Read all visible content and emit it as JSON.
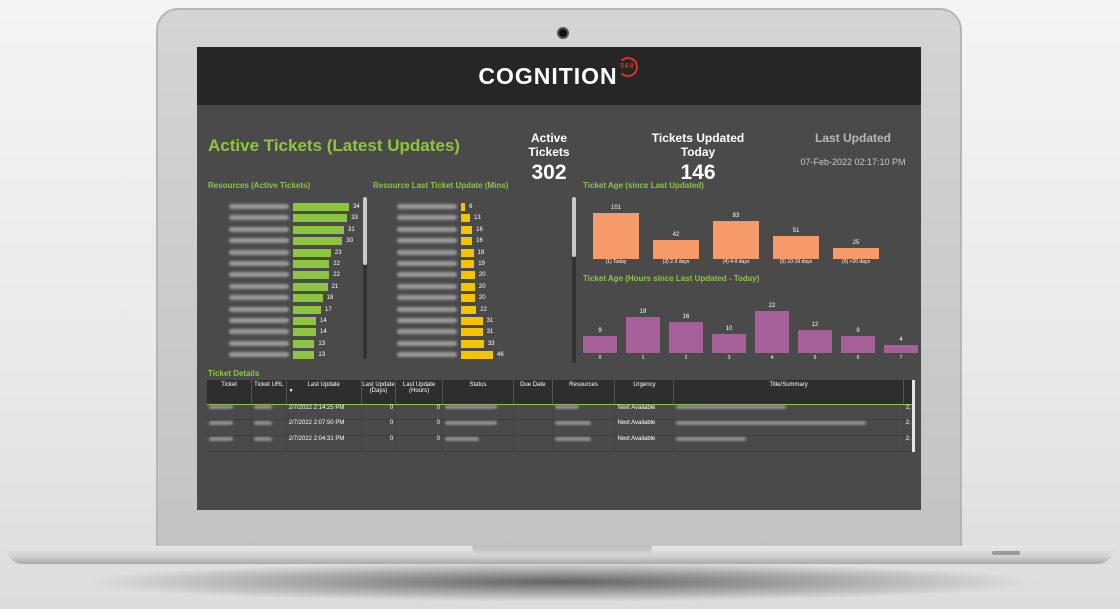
{
  "brand": {
    "logo_text": "COGNITION",
    "logo_sub": "360"
  },
  "header": {
    "title": "Active Tickets (Latest Updates)"
  },
  "kpis": {
    "active_label": "Active Tickets",
    "active_value": "302",
    "today_label": "Tickets Updated Today",
    "today_value": "146",
    "last_label": "Last Updated",
    "last_value": "07-Feb-2022 02:17:10 PM"
  },
  "colors": {
    "green": "#8cc63f",
    "yellow": "#f5c400",
    "orange": "#f79a6a",
    "purple": "#a6609a"
  },
  "resources_chart": {
    "title": "Resources (Active Tickets)",
    "values": [
      34,
      33,
      31,
      30,
      23,
      22,
      22,
      21,
      18,
      17,
      14,
      14,
      13,
      13
    ]
  },
  "last_update_chart": {
    "title": "Resource Last Ticket Update (Mins)",
    "values": [
      6,
      13,
      16,
      16,
      18,
      19,
      20,
      20,
      20,
      22,
      31,
      31,
      33,
      46
    ]
  },
  "chart_data": [
    {
      "type": "bar",
      "title": "Ticket Age (since Last Updated)",
      "categories": [
        "(1) Today",
        "(3) 2-3 days",
        "(4) 4-9 days",
        "(5) 10-19 days",
        "(6) >20 days"
      ],
      "values": [
        101,
        42,
        83,
        51,
        25
      ]
    },
    {
      "type": "bar",
      "title": "Ticket Age (Hours since Last Updated - Today)",
      "categories": [
        "0",
        "1",
        "2",
        "3",
        "4",
        "5",
        "6",
        "7"
      ],
      "values": [
        9,
        19,
        16,
        10,
        22,
        12,
        9,
        4
      ]
    }
  ],
  "ticket_details": {
    "title": "Ticket Details",
    "columns": [
      "Ticket",
      "Ticket URL",
      "Last Update",
      "Last Update (Days)",
      "Last Update (Hours)",
      "Status",
      "Due Date",
      "Resources",
      "Urgency",
      "Title/Summary"
    ],
    "rows": [
      {
        "last_update": "2/7/2022 2:14:25 PM",
        "days": "0",
        "hours": "0",
        "urgency": "Next Available",
        "tail": "2,"
      },
      {
        "last_update": "2/7/2022 2:07:50 PM",
        "days": "0",
        "hours": "0",
        "urgency": "Next Available",
        "tail": "2,"
      },
      {
        "last_update": "2/7/2022 2:04:31 PM",
        "days": "0",
        "hours": "0",
        "urgency": "Next Available",
        "tail": "2,"
      }
    ]
  }
}
